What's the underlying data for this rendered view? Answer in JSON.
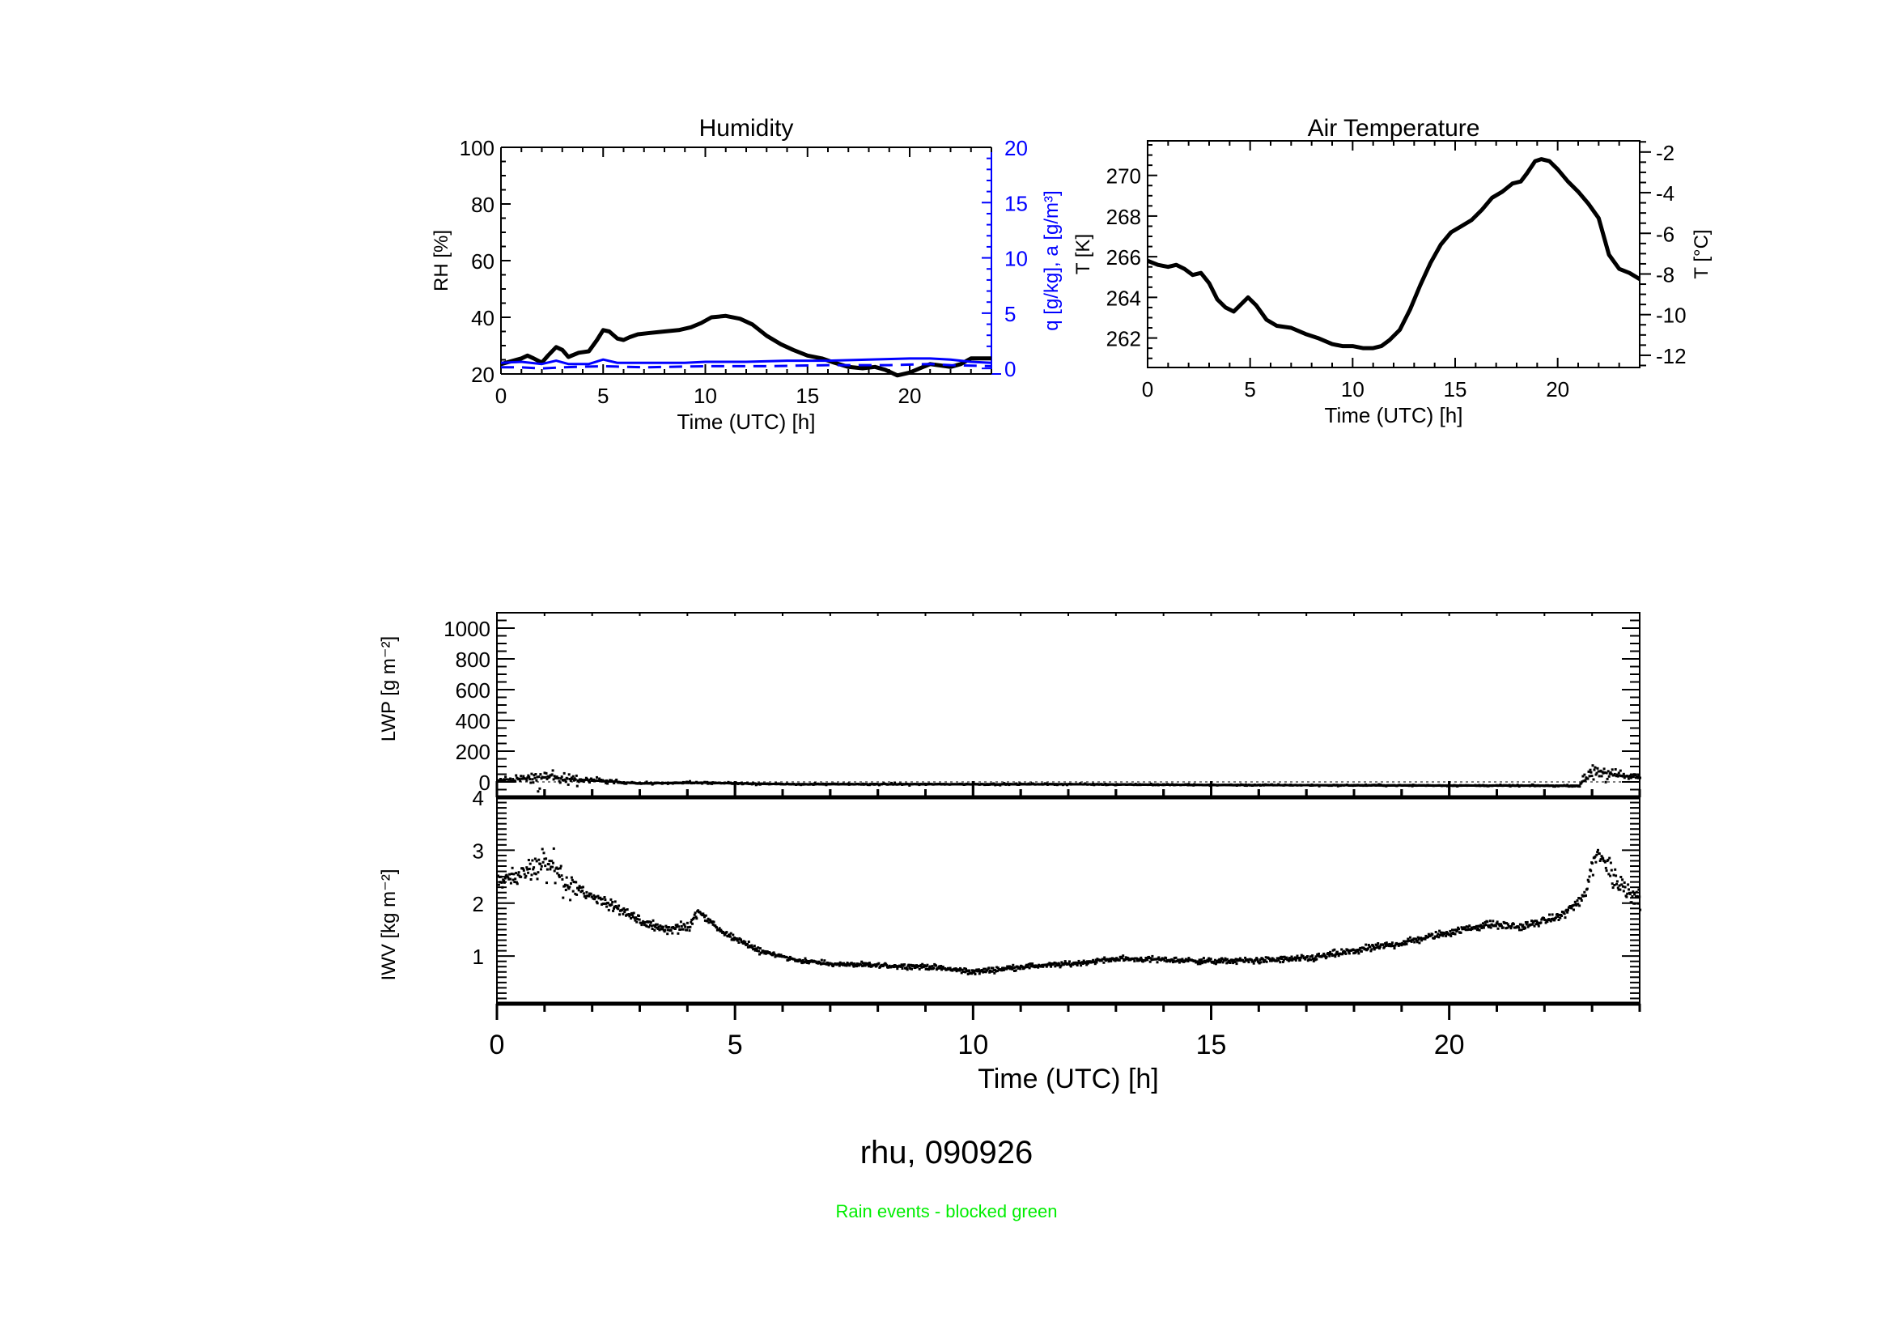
{
  "figure": {
    "station_title": "rhu, 090926",
    "note": "Rain events - blocked green",
    "note_color": "#00ee00"
  },
  "chart_data": [
    {
      "id": "humidity",
      "type": "line",
      "title": "Humidity",
      "xlabel": "Time (UTC) [h]",
      "ylabel": "RH [%]",
      "y2label": "q [g/kg], a [g/m³]",
      "y2_color": "#0000ff",
      "xlim": [
        0,
        24
      ],
      "ylim": [
        20,
        100
      ],
      "y2lim": [
        -0.5,
        20
      ],
      "xticks": [
        0,
        5,
        10,
        15,
        20
      ],
      "yticks": [
        20,
        40,
        60,
        80,
        100
      ],
      "y2ticks": [
        0,
        5,
        10,
        15,
        20
      ],
      "series": [
        {
          "name": "RH",
          "axis": "left",
          "color": "#000000",
          "style": "solid-thick",
          "x": [
            0,
            0.5,
            1,
            1.3,
            1.6,
            2,
            2.3,
            2.7,
            3,
            3.3,
            3.8,
            4.3,
            4.7,
            5.0,
            5.3,
            5.7,
            6.0,
            6.3,
            6.7,
            7.3,
            8,
            8.7,
            9.3,
            9.8,
            10.3,
            11,
            11.7,
            12.3,
            13,
            13.7,
            14.3,
            15,
            15.7,
            16.3,
            17,
            17.7,
            18.3,
            18.8,
            19.4,
            20,
            20.5,
            21,
            21.5,
            22,
            22.5,
            23,
            23.5,
            24
          ],
          "y": [
            23.5,
            24.5,
            25.5,
            26.5,
            25.5,
            24,
            26.5,
            29.5,
            28.5,
            26,
            27.5,
            28,
            32,
            35.5,
            35,
            32.5,
            32,
            33,
            34,
            34.5,
            35,
            35.5,
            36.5,
            38,
            40,
            40.5,
            39.5,
            37.5,
            33.5,
            30.5,
            28.5,
            26.5,
            25.5,
            24,
            22.5,
            22,
            22.5,
            21.5,
            19.5,
            20.5,
            22,
            23.5,
            23,
            22.5,
            23.5,
            25.5,
            25.5,
            25.5
          ]
        },
        {
          "name": "q",
          "axis": "right",
          "color": "#0000ff",
          "style": "solid",
          "x": [
            0,
            1,
            2,
            2.7,
            3.3,
            4.3,
            5,
            5.7,
            7,
            9,
            10,
            12,
            14,
            16,
            18,
            20,
            21,
            22,
            23,
            24
          ],
          "y": [
            0.5,
            0.6,
            0.4,
            0.7,
            0.4,
            0.4,
            0.8,
            0.5,
            0.5,
            0.5,
            0.6,
            0.6,
            0.7,
            0.7,
            0.8,
            0.9,
            0.9,
            0.8,
            0.6,
            0.5
          ]
        },
        {
          "name": "a",
          "axis": "right",
          "color": "#0000ff",
          "style": "dashed",
          "x": [
            0,
            1,
            2,
            3,
            5,
            7,
            10,
            13,
            16,
            19,
            21,
            22,
            24
          ],
          "y": [
            0.1,
            0.1,
            0.0,
            0.1,
            0.2,
            0.1,
            0.2,
            0.2,
            0.3,
            0.3,
            0.4,
            0.3,
            0.2
          ]
        }
      ]
    },
    {
      "id": "air-temperature",
      "type": "line",
      "title": "Air Temperature",
      "xlabel": "Time (UTC) [h]",
      "ylabel": "T [K]",
      "y2label": "T [°C]",
      "xlim": [
        0,
        24
      ],
      "ylim": [
        260.55,
        271.7
      ],
      "y2lim": [
        -12.6,
        -1.45
      ],
      "xticks": [
        0,
        5,
        10,
        15,
        20
      ],
      "yticks": [
        262,
        264,
        266,
        268,
        270
      ],
      "y2ticks": [
        -12,
        -10,
        -8,
        -6,
        -4,
        -2
      ],
      "series": [
        {
          "name": "T",
          "axis": "left",
          "color": "#000000",
          "style": "solid-thick",
          "x": [
            0,
            0.5,
            1,
            1.4,
            1.8,
            2.2,
            2.6,
            3,
            3.4,
            3.8,
            4.2,
            4.5,
            4.9,
            5.3,
            5.8,
            6.3,
            7,
            7.7,
            8.3,
            9,
            9.5,
            10,
            10.5,
            11,
            11.4,
            11.8,
            12.3,
            12.8,
            13.3,
            13.8,
            14.3,
            14.8,
            15.3,
            15.8,
            16.3,
            16.8,
            17.3,
            17.8,
            18.2,
            18.5,
            18.9,
            19.2,
            19.6,
            20,
            20.5,
            21,
            21.5,
            22,
            22.5,
            23,
            23.5,
            24
          ],
          "y": [
            265.8,
            265.6,
            265.5,
            265.6,
            265.4,
            265.1,
            265.2,
            264.7,
            263.9,
            263.5,
            263.3,
            263.6,
            264.0,
            263.6,
            262.9,
            262.6,
            262.5,
            262.2,
            262.0,
            261.7,
            261.6,
            261.6,
            261.5,
            261.5,
            261.6,
            261.9,
            262.4,
            263.4,
            264.6,
            265.7,
            266.6,
            267.2,
            267.5,
            267.8,
            268.3,
            268.9,
            269.2,
            269.6,
            269.7,
            270.1,
            270.7,
            270.8,
            270.7,
            270.3,
            269.7,
            269.2,
            268.6,
            267.9,
            266.1,
            265.4,
            265.2,
            264.9
          ]
        }
      ]
    },
    {
      "id": "lwp",
      "type": "scatter",
      "title": "",
      "xlabel": "",
      "ylabel": "LWP [g m⁻²]",
      "xlim": [
        0,
        24
      ],
      "ylim": [
        -100,
        1100
      ],
      "xticks": [
        0,
        5,
        10,
        15,
        20
      ],
      "yticks": [
        0,
        200,
        400,
        600,
        800,
        1000
      ],
      "reference_line": {
        "y": 0,
        "style": "dotted"
      },
      "envelope": [
        {
          "x": 0,
          "base": 10,
          "spread": 40
        },
        {
          "x": 0.5,
          "base": 20,
          "spread": 60
        },
        {
          "x": 1.0,
          "base": 30,
          "spread": 200
        },
        {
          "x": 1.5,
          "base": 20,
          "spread": 120
        },
        {
          "x": 2.0,
          "base": 10,
          "spread": 40
        },
        {
          "x": 3.0,
          "base": -10,
          "spread": 15
        },
        {
          "x": 4.3,
          "base": -5,
          "spread": 15
        },
        {
          "x": 6,
          "base": -15,
          "spread": 10
        },
        {
          "x": 12,
          "base": -15,
          "spread": 10
        },
        {
          "x": 15,
          "base": -20,
          "spread": 10
        },
        {
          "x": 22.7,
          "base": -25,
          "spread": 8
        },
        {
          "x": 23.0,
          "base": 80,
          "spread": 180
        },
        {
          "x": 23.5,
          "base": 40,
          "spread": 80
        },
        {
          "x": 24,
          "base": 30,
          "spread": 40
        }
      ]
    },
    {
      "id": "iwv",
      "type": "scatter",
      "title": "",
      "xlabel": "Time (UTC) [h]",
      "ylabel": "IWV [kg m⁻²]",
      "xlim": [
        0,
        24
      ],
      "ylim": [
        0.1,
        4.0
      ],
      "xticks": [
        0,
        5,
        10,
        15,
        20
      ],
      "xtick_labels": [
        "0",
        "5",
        "10",
        "15",
        "20"
      ],
      "yticks": [
        1,
        2,
        3,
        4
      ],
      "envelope": [
        {
          "x": 0,
          "base": 2.4,
          "spread": 0.25
        },
        {
          "x": 0.5,
          "base": 2.55,
          "spread": 0.3
        },
        {
          "x": 1.0,
          "base": 2.8,
          "spread": 0.6
        },
        {
          "x": 1.5,
          "base": 2.3,
          "spread": 0.3
        },
        {
          "x": 2.0,
          "base": 2.1,
          "spread": 0.2
        },
        {
          "x": 2.5,
          "base": 1.9,
          "spread": 0.15
        },
        {
          "x": 3.0,
          "base": 1.65,
          "spread": 0.12
        },
        {
          "x": 3.5,
          "base": 1.5,
          "spread": 0.12
        },
        {
          "x": 4.0,
          "base": 1.55,
          "spread": 0.15
        },
        {
          "x": 4.2,
          "base": 1.85,
          "spread": 0.1
        },
        {
          "x": 4.7,
          "base": 1.45,
          "spread": 0.08
        },
        {
          "x": 5.5,
          "base": 1.1,
          "spread": 0.08
        },
        {
          "x": 6.3,
          "base": 0.92,
          "spread": 0.06
        },
        {
          "x": 7.0,
          "base": 0.85,
          "spread": 0.06
        },
        {
          "x": 8.0,
          "base": 0.82,
          "spread": 0.07
        },
        {
          "x": 9.0,
          "base": 0.8,
          "spread": 0.07
        },
        {
          "x": 10.0,
          "base": 0.7,
          "spread": 0.08
        },
        {
          "x": 11.0,
          "base": 0.8,
          "spread": 0.07
        },
        {
          "x": 12.0,
          "base": 0.85,
          "spread": 0.07
        },
        {
          "x": 13.0,
          "base": 0.95,
          "spread": 0.07
        },
        {
          "x": 14.0,
          "base": 0.93,
          "spread": 0.08
        },
        {
          "x": 15.0,
          "base": 0.9,
          "spread": 0.08
        },
        {
          "x": 16.0,
          "base": 0.92,
          "spread": 0.08
        },
        {
          "x": 17.0,
          "base": 0.95,
          "spread": 0.1
        },
        {
          "x": 18.0,
          "base": 1.1,
          "spread": 0.1
        },
        {
          "x": 19.0,
          "base": 1.25,
          "spread": 0.1
        },
        {
          "x": 20.0,
          "base": 1.45,
          "spread": 0.1
        },
        {
          "x": 20.8,
          "base": 1.6,
          "spread": 0.1
        },
        {
          "x": 21.5,
          "base": 1.55,
          "spread": 0.1
        },
        {
          "x": 22.3,
          "base": 1.75,
          "spread": 0.1
        },
        {
          "x": 22.8,
          "base": 2.1,
          "spread": 0.15
        },
        {
          "x": 23.1,
          "base": 3.0,
          "spread": 0.6
        },
        {
          "x": 23.5,
          "base": 2.4,
          "spread": 0.35
        },
        {
          "x": 24.0,
          "base": 2.05,
          "spread": 0.25
        }
      ]
    }
  ]
}
